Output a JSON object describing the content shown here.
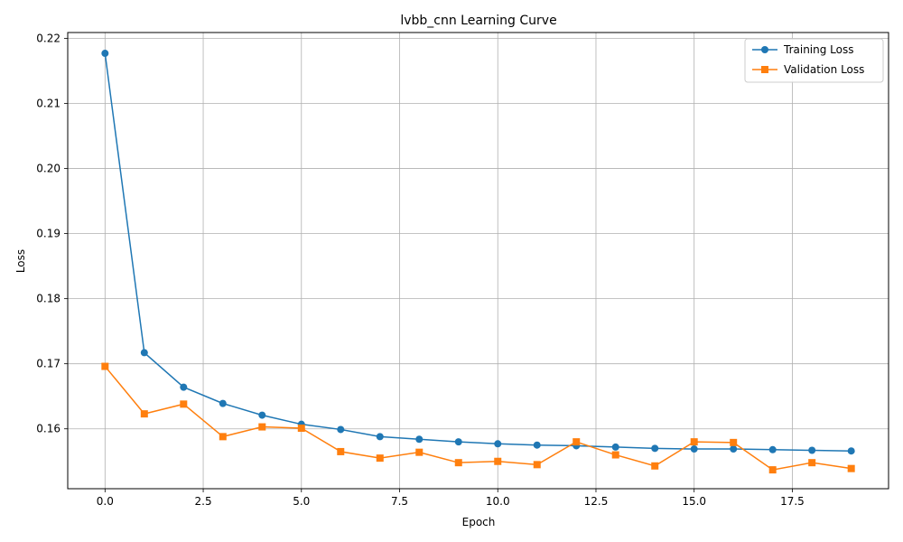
{
  "chart_data": {
    "type": "line",
    "title": "lvbb_cnn Learning Curve",
    "xlabel": "Epoch",
    "ylabel": "Loss",
    "xlim": [
      -0.95,
      19.95
    ],
    "ylim": [
      0.1508,
      0.2209
    ],
    "x_ticks": [
      0.0,
      2.5,
      5.0,
      7.5,
      10.0,
      12.5,
      15.0,
      17.5
    ],
    "x_tick_labels": [
      "0.0",
      "2.5",
      "5.0",
      "7.5",
      "10.0",
      "12.5",
      "15.0",
      "17.5"
    ],
    "y_ticks": [
      0.16,
      0.17,
      0.18,
      0.19,
      0.2,
      0.21,
      0.22
    ],
    "y_tick_labels": [
      "0.16",
      "0.17",
      "0.18",
      "0.19",
      "0.20",
      "0.21",
      "0.22"
    ],
    "grid": true,
    "legend_position": "top-right",
    "x": [
      0,
      1,
      2,
      3,
      4,
      5,
      6,
      7,
      8,
      9,
      10,
      11,
      12,
      13,
      14,
      15,
      16,
      17,
      18,
      19
    ],
    "series": [
      {
        "name": "Training Loss",
        "color": "#1f77b4",
        "marker": "circle",
        "values": [
          0.2177,
          0.1717,
          0.1664,
          0.1639,
          0.1621,
          0.1607,
          0.1599,
          0.1588,
          0.1584,
          0.158,
          0.1577,
          0.1575,
          0.1574,
          0.1572,
          0.157,
          0.1569,
          0.1569,
          0.1568,
          0.1567,
          0.1566
        ]
      },
      {
        "name": "Validation Loss",
        "color": "#ff7f0e",
        "marker": "square",
        "values": [
          0.1696,
          0.1623,
          0.1638,
          0.1588,
          0.1603,
          0.1601,
          0.1565,
          0.1555,
          0.1564,
          0.1548,
          0.155,
          0.1545,
          0.158,
          0.156,
          0.1543,
          0.158,
          0.1579,
          0.1537,
          0.1548,
          0.1539
        ]
      }
    ]
  }
}
